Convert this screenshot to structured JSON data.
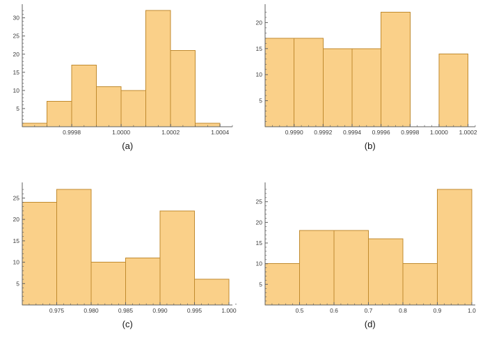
{
  "figure": {
    "description": "2x2 grid of histograms",
    "background": "#ffffff"
  },
  "colors": {
    "bar_fill": "#FAD089",
    "bar_edge": "#C08A2E",
    "axis": "#5f5f5f",
    "tick_label": "#3c3c3c",
    "caption": "#151515"
  },
  "chart_data": [
    {
      "type": "bar",
      "subtype": "histogram",
      "caption": "(a)",
      "bin_edges": [
        0.9996,
        0.9997,
        0.9998,
        0.9999,
        1.0,
        1.0001,
        1.0002,
        1.0003,
        1.0004
      ],
      "counts": [
        1,
        7,
        17,
        11,
        10,
        32,
        21,
        1
      ],
      "xlim": [
        0.9996,
        1.00045
      ],
      "ylim": [
        0,
        33
      ],
      "xticks": [
        {
          "v": 0.9998,
          "label": "0.9998"
        },
        {
          "v": 1.0,
          "label": "1.0000"
        },
        {
          "v": 1.0002,
          "label": "1.0002"
        },
        {
          "v": 1.0004,
          "label": "1.0004"
        }
      ],
      "yticks": [
        {
          "v": 5,
          "label": "5"
        },
        {
          "v": 10,
          "label": "10"
        },
        {
          "v": 15,
          "label": "15"
        },
        {
          "v": 20,
          "label": "20"
        },
        {
          "v": 25,
          "label": "25"
        },
        {
          "v": 30,
          "label": "30"
        }
      ],
      "xminor": 5e-05,
      "yminor": 1,
      "grid": false,
      "legend": null
    },
    {
      "type": "bar",
      "subtype": "histogram",
      "caption": "(b)",
      "bin_edges": [
        0.9988,
        0.999,
        0.9992,
        0.9994,
        0.9996,
        0.9998,
        1.0,
        1.0002
      ],
      "counts": [
        17,
        17,
        15,
        15,
        22,
        0,
        14
      ],
      "xlim": [
        0.9988,
        1.00025
      ],
      "ylim": [
        0,
        23
      ],
      "xticks": [
        {
          "v": 0.999,
          "label": "0.9990"
        },
        {
          "v": 0.9992,
          "label": "0.9992"
        },
        {
          "v": 0.9994,
          "label": "0.9994"
        },
        {
          "v": 0.9996,
          "label": "0.9996"
        },
        {
          "v": 0.9998,
          "label": "0.9998"
        },
        {
          "v": 1.0,
          "label": "1.0000"
        },
        {
          "v": 1.0002,
          "label": "1.0002"
        }
      ],
      "yticks": [
        {
          "v": 5,
          "label": "5"
        },
        {
          "v": 10,
          "label": "10"
        },
        {
          "v": 15,
          "label": "15"
        },
        {
          "v": 20,
          "label": "20"
        }
      ],
      "xminor": 5e-05,
      "yminor": 1,
      "grid": false,
      "legend": null
    },
    {
      "type": "bar",
      "subtype": "histogram",
      "caption": "(c)",
      "bin_edges": [
        0.97,
        0.975,
        0.98,
        0.985,
        0.99,
        0.995,
        1.0
      ],
      "counts": [
        24,
        27,
        10,
        11,
        22,
        6
      ],
      "xlim": [
        0.97,
        1.0005
      ],
      "ylim": [
        0,
        28
      ],
      "xticks": [
        {
          "v": 0.975,
          "label": "0.975"
        },
        {
          "v": 0.98,
          "label": "0.980"
        },
        {
          "v": 0.985,
          "label": "0.985"
        },
        {
          "v": 0.99,
          "label": "0.990"
        },
        {
          "v": 0.995,
          "label": "0.995"
        },
        {
          "v": 1.0,
          "label": "1.000"
        }
      ],
      "yticks": [
        {
          "v": 5,
          "label": "5"
        },
        {
          "v": 10,
          "label": "10"
        },
        {
          "v": 15,
          "label": "15"
        },
        {
          "v": 20,
          "label": "20"
        },
        {
          "v": 25,
          "label": "25"
        }
      ],
      "xminor": 0.001,
      "yminor": 1,
      "grid": false,
      "legend": null
    },
    {
      "type": "bar",
      "subtype": "histogram",
      "caption": "(d)",
      "bin_edges": [
        0.4,
        0.5,
        0.6,
        0.7,
        0.8,
        0.9,
        1.0
      ],
      "counts": [
        10,
        18,
        18,
        16,
        10,
        28
      ],
      "xlim": [
        0.4,
        1.01
      ],
      "ylim": [
        0,
        29
      ],
      "xticks": [
        {
          "v": 0.5,
          "label": "0.5"
        },
        {
          "v": 0.6,
          "label": "0.6"
        },
        {
          "v": 0.7,
          "label": "0.7"
        },
        {
          "v": 0.8,
          "label": "0.8"
        },
        {
          "v": 0.9,
          "label": "0.9"
        },
        {
          "v": 1.0,
          "label": "1.0"
        }
      ],
      "yticks": [
        {
          "v": 5,
          "label": "5"
        },
        {
          "v": 10,
          "label": "10"
        },
        {
          "v": 15,
          "label": "15"
        },
        {
          "v": 20,
          "label": "20"
        },
        {
          "v": 25,
          "label": "25"
        }
      ],
      "xminor": 0.02,
      "yminor": 1,
      "grid": false,
      "legend": null
    }
  ]
}
